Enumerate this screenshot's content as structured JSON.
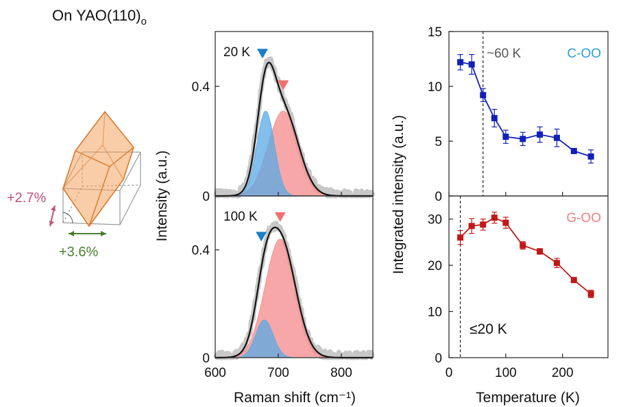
{
  "figure": {
    "title_main": "On YAO(110)",
    "title_sub": "o",
    "strain_vertical": "+2.7%",
    "strain_horizontal": "+3.6%"
  },
  "colors": {
    "blue_peak": "#5aa9e6",
    "red_peak": "#f48a8a",
    "marker_blue": "#1a7fc7",
    "marker_red": "#f07070",
    "series_blue": "#1020b8",
    "series_red": "#c01818",
    "label_blue": "#2aa0d8",
    "label_red": "#f08080",
    "strain_pink": "#c0507a",
    "strain_green": "#4a7f30",
    "crystal": "#f4a460"
  },
  "chart_data": [
    {
      "type": "line",
      "panel": "raman-20K",
      "label": "20 K",
      "xlabel": "Raman shift (cm⁻¹)",
      "ylabel": "Intensity (a.u.)",
      "xlim": [
        600,
        850
      ],
      "ylim": [
        0,
        0.6
      ],
      "xticks": [
        600,
        700,
        800
      ],
      "yticks": [
        0,
        0.4
      ],
      "peaks": [
        {
          "name": "blue",
          "center": 680,
          "height": 0.31,
          "width": 14
        },
        {
          "name": "red",
          "center": 708,
          "height": 0.31,
          "width": 24
        }
      ],
      "fit_max": 0.47,
      "data_max": 0.46
    },
    {
      "type": "line",
      "panel": "raman-100K",
      "label": "100 K",
      "xlabel": "Raman shift (cm⁻¹)",
      "ylabel": "Intensity (a.u.)",
      "xlim": [
        600,
        850
      ],
      "ylim": [
        0,
        0.6
      ],
      "xticks": [
        600,
        700,
        800
      ],
      "yticks": [
        0,
        0.4
      ],
      "peaks": [
        {
          "name": "blue",
          "center": 678,
          "height": 0.14,
          "width": 14
        },
        {
          "name": "red",
          "center": 703,
          "height": 0.44,
          "width": 24
        }
      ],
      "fit_max": 0.45,
      "data_max": 0.45
    },
    {
      "type": "scatter",
      "panel": "C-OO",
      "label": "C-OO",
      "annotation": "~60 K",
      "vline": 60,
      "xlim": [
        0,
        280
      ],
      "ylim": [
        0,
        15
      ],
      "yticks": [
        0,
        5,
        10,
        15
      ],
      "x": [
        20,
        40,
        60,
        80,
        100,
        130,
        160,
        190,
        220,
        250
      ],
      "y": [
        12.2,
        12.0,
        9.2,
        7.1,
        5.4,
        5.2,
        5.6,
        5.3,
        4.1,
        3.6
      ],
      "err": [
        0.7,
        0.9,
        0.6,
        0.8,
        0.6,
        0.6,
        0.7,
        0.8,
        0.2,
        0.6
      ]
    },
    {
      "type": "scatter",
      "panel": "G-OO",
      "label": "G-OO",
      "annotation": "≤20 K",
      "vline": 20,
      "xlabel": "Temperature (K)",
      "ylabel": "Integrated intensity (a.u.)",
      "xlim": [
        0,
        280
      ],
      "ylim": [
        0,
        35
      ],
      "yticks": [
        0,
        10,
        20,
        30
      ],
      "xticks": [
        0,
        100,
        200
      ],
      "x": [
        20,
        40,
        60,
        80,
        100,
        130,
        160,
        190,
        220,
        250
      ],
      "y": [
        26.0,
        28.5,
        28.8,
        30.3,
        29.2,
        24.3,
        23.0,
        20.5,
        16.8,
        13.8
      ],
      "err": [
        1.5,
        1.6,
        1.2,
        1.2,
        1.2,
        0.8,
        0.6,
        1.0,
        0.4,
        0.8
      ]
    }
  ]
}
